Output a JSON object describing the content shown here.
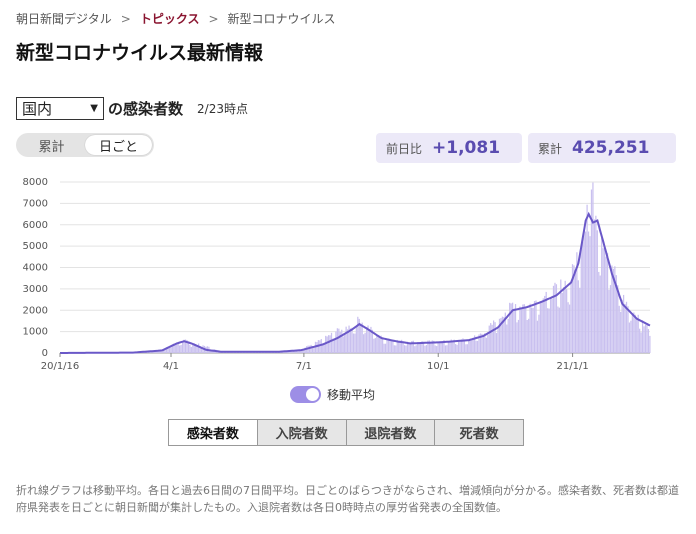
{
  "breadcrumb": {
    "items": [
      "朝日新聞デジタル",
      "トピックス",
      "新型コロナウイルス"
    ],
    "separator": ">"
  },
  "page": {
    "title": "新型コロナウイルス最新情報"
  },
  "region": {
    "selected": "国内",
    "heading": "の感染者数",
    "timestamp": "2/23時点"
  },
  "view_toggle": {
    "options": [
      "累計",
      "日ごと"
    ],
    "active": "日ごと"
  },
  "stats": {
    "day_diff_label": "前日比",
    "day_diff_value": "+1,081",
    "total_label": "累計",
    "total_value": "425,251"
  },
  "chart_data": {
    "type": "bar",
    "overlay": "line",
    "x_range": [
      "2020-01-16",
      "2021-02-23"
    ],
    "x_ticks": [
      "20/1/16",
      "4/1",
      "7/1",
      "10/1",
      "21/1/1"
    ],
    "y_ticks": [
      "0",
      "1000",
      "2000",
      "3000",
      "4000",
      "5000",
      "6000",
      "7000",
      "8000"
    ],
    "ylim": [
      0,
      8000
    ],
    "grid": true,
    "series": [
      {
        "kind": "bar",
        "color": "#c9c0ef",
        "anchors": [
          [
            0,
            0
          ],
          [
            50,
            10
          ],
          [
            70,
            150
          ],
          [
            80,
            450
          ],
          [
            85,
            600
          ],
          [
            90,
            450
          ],
          [
            100,
            300
          ],
          [
            110,
            60
          ],
          [
            150,
            40
          ],
          [
            165,
            150
          ],
          [
            180,
            600
          ],
          [
            190,
            1000
          ],
          [
            200,
            1200
          ],
          [
            205,
            1500
          ],
          [
            210,
            1200
          ],
          [
            220,
            700
          ],
          [
            230,
            550
          ],
          [
            240,
            500
          ],
          [
            260,
            500
          ],
          [
            280,
            600
          ],
          [
            290,
            900
          ],
          [
            300,
            1500
          ],
          [
            310,
            2200
          ],
          [
            320,
            2100
          ],
          [
            330,
            2500
          ],
          [
            340,
            2800
          ],
          [
            350,
            3300
          ],
          [
            355,
            4500
          ],
          [
            360,
            6000
          ],
          [
            362,
            7900
          ],
          [
            365,
            6800
          ],
          [
            370,
            5500
          ],
          [
            375,
            4500
          ],
          [
            380,
            3500
          ],
          [
            385,
            2500
          ],
          [
            390,
            2000
          ],
          [
            400,
            1300
          ],
          [
            405,
            1100
          ],
          [
            410,
            1000
          ]
        ]
      },
      {
        "kind": "line",
        "name": "移動平均",
        "color": "#6a58c8",
        "anchors": [
          [
            0,
            0
          ],
          [
            50,
            20
          ],
          [
            70,
            120
          ],
          [
            80,
            450
          ],
          [
            85,
            550
          ],
          [
            90,
            450
          ],
          [
            95,
            300
          ],
          [
            100,
            150
          ],
          [
            110,
            60
          ],
          [
            150,
            60
          ],
          [
            165,
            130
          ],
          [
            180,
            400
          ],
          [
            190,
            700
          ],
          [
            200,
            1100
          ],
          [
            205,
            1350
          ],
          [
            210,
            1150
          ],
          [
            220,
            700
          ],
          [
            230,
            550
          ],
          [
            240,
            450
          ],
          [
            260,
            500
          ],
          [
            280,
            600
          ],
          [
            290,
            800
          ],
          [
            300,
            1200
          ],
          [
            310,
            2000
          ],
          [
            320,
            2150
          ],
          [
            330,
            2400
          ],
          [
            340,
            2700
          ],
          [
            350,
            3300
          ],
          [
            355,
            4200
          ],
          [
            360,
            6200
          ],
          [
            362,
            6500
          ],
          [
            365,
            6100
          ],
          [
            368,
            6200
          ],
          [
            372,
            5200
          ],
          [
            378,
            3700
          ],
          [
            385,
            2300
          ],
          [
            395,
            1600
          ],
          [
            405,
            1250
          ],
          [
            410,
            1250
          ]
        ]
      }
    ]
  },
  "moving_average": {
    "label": "移動平均",
    "on": true
  },
  "metric_tabs": {
    "items": [
      "感染者数",
      "入院者数",
      "退院者数",
      "死者数"
    ],
    "active": "感染者数"
  },
  "note": "折れ線グラフは移動平均。各日と過去6日間の7日間平均。日ごとのばらつきがならされ、増減傾向が分かる。感染者数、死者数は都道府県発表を日ごとに朝日新聞が集計したもの。入退院者数は各日0時時点の厚労省発表の全国数値。",
  "colors": {
    "accent": "#6a58c8",
    "bar": "#c9c0ef",
    "breadcrumb_active": "#8a1530"
  }
}
